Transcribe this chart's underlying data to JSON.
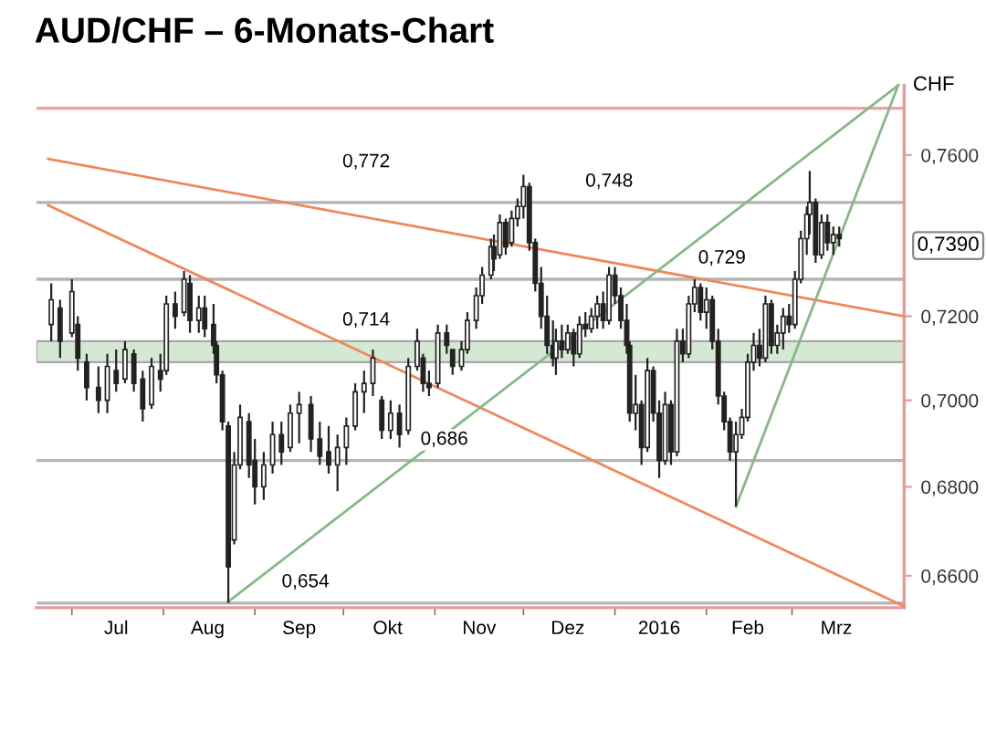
{
  "chart_data": {
    "type": "candlestick",
    "title": "AUD/CHF – 6-Monats-Chart",
    "ylabel": "CHF",
    "log": true,
    "legend": false,
    "grid": false,
    "xlim": [
      "2015-06-19",
      "2016-04-08"
    ],
    "ylim": [
      0.653,
      0.778
    ],
    "yticks": [
      {
        "value": 0.66,
        "label": "0,6600"
      },
      {
        "value": 0.68,
        "label": "0,6800"
      },
      {
        "value": 0.7,
        "label": "0,7000"
      },
      {
        "value": 0.72,
        "label": "0,7200"
      },
      {
        "value": 0.76,
        "label": "0,7600"
      }
    ],
    "xticks": [
      {
        "value": "2015-07-01",
        "label": null
      },
      {
        "value": "2015-07-16",
        "label": "Jul"
      },
      {
        "value": "2015-08-01",
        "label": null
      },
      {
        "value": "2015-08-16",
        "label": "Aug"
      },
      {
        "value": "2015-09-01",
        "label": null
      },
      {
        "value": "2015-09-16",
        "label": "Sep"
      },
      {
        "value": "2015-10-01",
        "label": null
      },
      {
        "value": "2015-10-16",
        "label": "Okt"
      },
      {
        "value": "2015-11-01",
        "label": null
      },
      {
        "value": "2015-11-16",
        "label": "Nov"
      },
      {
        "value": "2015-12-01",
        "label": null
      },
      {
        "value": "2015-12-16",
        "label": "Dez"
      },
      {
        "value": "2016-01-01",
        "label": null
      },
      {
        "value": "2016-01-16",
        "label": "2016"
      },
      {
        "value": "2016-02-01",
        "label": null
      },
      {
        "value": "2016-02-15",
        "label": "Feb"
      },
      {
        "value": "2016-03-01",
        "label": null
      },
      {
        "value": "2016-03-16",
        "label": "Mrz"
      }
    ],
    "x": [
      "2015-06-24",
      "2015-06-27",
      "2015-07-01",
      "2015-07-03",
      "2015-07-06",
      "2015-07-10",
      "2015-07-13",
      "2015-07-16",
      "2015-07-19",
      "2015-07-22",
      "2015-07-25",
      "2015-07-28",
      "2015-07-31",
      "2015-08-02",
      "2015-08-05",
      "2015-08-08",
      "2015-08-10",
      "2015-08-13",
      "2015-08-15",
      "2015-08-18",
      "2015-08-19",
      "2015-08-21",
      "2015-08-23",
      "2015-08-25",
      "2015-08-27",
      "2015-08-30",
      "2015-09-01",
      "2015-09-04",
      "2015-09-07",
      "2015-09-10",
      "2015-09-13",
      "2015-09-16",
      "2015-09-20",
      "2015-09-23",
      "2015-09-26",
      "2015-09-29",
      "2015-10-02",
      "2015-10-05",
      "2015-10-08",
      "2015-10-11",
      "2015-10-14",
      "2015-10-17",
      "2015-10-20",
      "2015-10-23",
      "2015-10-26",
      "2015-10-28",
      "2015-10-30",
      "2015-11-02",
      "2015-11-05",
      "2015-11-07",
      "2015-11-10",
      "2015-11-12",
      "2015-11-15",
      "2015-11-17",
      "2015-11-20",
      "2015-11-21",
      "2015-11-23",
      "2015-11-25",
      "2015-11-27",
      "2015-11-29",
      "2015-12-01",
      "2015-12-03",
      "2015-12-05",
      "2015-12-07",
      "2015-12-09",
      "2015-12-11",
      "2015-12-12",
      "2015-12-14",
      "2015-12-16",
      "2015-12-18",
      "2015-12-20",
      "2015-12-22",
      "2015-12-24",
      "2015-12-26",
      "2015-12-28",
      "2015-12-30",
      "2016-01-01",
      "2016-01-03",
      "2016-01-05",
      "2016-01-06",
      "2016-01-08",
      "2016-01-10",
      "2016-01-12",
      "2016-01-14",
      "2016-01-16",
      "2016-01-18",
      "2016-01-20",
      "2016-01-22",
      "2016-01-24",
      "2016-01-26",
      "2016-01-28",
      "2016-01-30",
      "2016-02-01",
      "2016-02-03",
      "2016-02-05",
      "2016-02-07",
      "2016-02-09",
      "2016-02-11",
      "2016-02-13",
      "2016-02-15",
      "2016-02-17",
      "2016-02-19",
      "2016-02-21",
      "2016-02-23",
      "2016-02-25",
      "2016-02-27",
      "2016-02-29",
      "2016-03-02",
      "2016-03-04",
      "2016-03-06",
      "2016-03-07",
      "2016-03-09",
      "2016-03-11",
      "2016-03-13",
      "2016-03-15",
      "2016-03-17"
    ],
    "ohlc": [
      [
        0.718,
        0.728,
        0.714,
        0.724
      ],
      [
        0.722,
        0.724,
        0.71,
        0.714
      ],
      [
        0.716,
        0.729,
        0.715,
        0.726
      ],
      [
        0.718,
        0.72,
        0.707,
        0.71
      ],
      [
        0.709,
        0.711,
        0.7,
        0.703
      ],
      [
        0.703,
        0.708,
        0.697,
        0.7
      ],
      [
        0.7,
        0.711,
        0.697,
        0.708
      ],
      [
        0.707,
        0.712,
        0.702,
        0.704
      ],
      [
        0.705,
        0.714,
        0.704,
        0.712
      ],
      [
        0.711,
        0.712,
        0.702,
        0.704
      ],
      [
        0.705,
        0.707,
        0.695,
        0.698
      ],
      [
        0.699,
        0.71,
        0.698,
        0.708
      ],
      [
        0.707,
        0.711,
        0.702,
        0.705
      ],
      [
        0.707,
        0.725,
        0.706,
        0.723
      ],
      [
        0.723,
        0.726,
        0.717,
        0.72
      ],
      [
        0.721,
        0.731,
        0.72,
        0.729
      ],
      [
        0.728,
        0.73,
        0.716,
        0.719
      ],
      [
        0.719,
        0.725,
        0.716,
        0.722
      ],
      [
        0.722,
        0.725,
        0.715,
        0.717
      ],
      [
        0.718,
        0.723,
        0.711,
        0.713
      ],
      [
        0.713,
        0.714,
        0.704,
        0.706
      ],
      [
        0.706,
        0.707,
        0.693,
        0.695
      ],
      [
        0.694,
        0.695,
        0.654,
        0.662
      ],
      [
        0.668,
        0.688,
        0.667,
        0.685
      ],
      [
        0.685,
        0.699,
        0.684,
        0.696
      ],
      [
        0.695,
        0.697,
        0.682,
        0.685
      ],
      [
        0.686,
        0.691,
        0.676,
        0.68
      ],
      [
        0.68,
        0.688,
        0.677,
        0.685
      ],
      [
        0.685,
        0.695,
        0.683,
        0.692
      ],
      [
        0.692,
        0.695,
        0.685,
        0.688
      ],
      [
        0.689,
        0.699,
        0.688,
        0.697
      ],
      [
        0.697,
        0.702,
        0.69,
        0.699
      ],
      [
        0.699,
        0.701,
        0.688,
        0.691
      ],
      [
        0.691,
        0.695,
        0.685,
        0.687
      ],
      [
        0.688,
        0.694,
        0.683,
        0.685
      ],
      [
        0.685,
        0.692,
        0.679,
        0.689
      ],
      [
        0.689,
        0.696,
        0.685,
        0.694
      ],
      [
        0.694,
        0.704,
        0.693,
        0.702
      ],
      [
        0.702,
        0.707,
        0.697,
        0.704
      ],
      [
        0.704,
        0.712,
        0.701,
        0.71
      ],
      [
        0.7,
        0.701,
        0.691,
        0.693
      ],
      [
        0.693,
        0.7,
        0.691,
        0.697
      ],
      [
        0.697,
        0.699,
        0.689,
        0.692
      ],
      [
        0.693,
        0.71,
        0.692,
        0.708
      ],
      [
        0.708,
        0.717,
        0.707,
        0.714
      ],
      [
        0.71,
        0.711,
        0.702,
        0.704
      ],
      [
        0.704,
        0.707,
        0.701,
        0.703
      ],
      [
        0.704,
        0.718,
        0.703,
        0.716
      ],
      [
        0.716,
        0.718,
        0.711,
        0.713
      ],
      [
        0.712,
        0.712,
        0.706,
        0.708
      ],
      [
        0.708,
        0.714,
        0.707,
        0.712
      ],
      [
        0.712,
        0.721,
        0.711,
        0.719
      ],
      [
        0.719,
        0.727,
        0.717,
        0.725
      ],
      [
        0.725,
        0.732,
        0.723,
        0.73
      ],
      [
        0.73,
        0.739,
        0.729,
        0.737
      ],
      [
        0.737,
        0.74,
        0.731,
        0.734
      ],
      [
        0.735,
        0.745,
        0.734,
        0.743
      ],
      [
        0.743,
        0.744,
        0.735,
        0.737
      ],
      [
        0.738,
        0.746,
        0.737,
        0.744
      ],
      [
        0.744,
        0.749,
        0.742,
        0.747
      ],
      [
        0.747,
        0.755,
        0.744,
        0.752
      ],
      [
        0.752,
        0.753,
        0.736,
        0.738
      ],
      [
        0.738,
        0.739,
        0.726,
        0.728
      ],
      [
        0.728,
        0.732,
        0.717,
        0.72
      ],
      [
        0.72,
        0.725,
        0.711,
        0.713
      ],
      [
        0.713,
        0.719,
        0.708,
        0.71
      ],
      [
        0.71,
        0.717,
        0.706,
        0.714
      ],
      [
        0.714,
        0.718,
        0.71,
        0.712
      ],
      [
        0.712,
        0.718,
        0.711,
        0.716
      ],
      [
        0.716,
        0.717,
        0.708,
        0.711
      ],
      [
        0.711,
        0.72,
        0.71,
        0.718
      ],
      [
        0.718,
        0.721,
        0.715,
        0.717
      ],
      [
        0.717,
        0.722,
        0.716,
        0.72
      ],
      [
        0.72,
        0.725,
        0.717,
        0.723
      ],
      [
        0.723,
        0.726,
        0.717,
        0.719
      ],
      [
        0.719,
        0.732,
        0.718,
        0.73
      ],
      [
        0.73,
        0.732,
        0.723,
        0.725
      ],
      [
        0.725,
        0.727,
        0.717,
        0.719
      ],
      [
        0.719,
        0.723,
        0.711,
        0.713
      ],
      [
        0.713,
        0.714,
        0.695,
        0.697
      ],
      [
        0.697,
        0.706,
        0.693,
        0.699
      ],
      [
        0.699,
        0.7,
        0.685,
        0.689
      ],
      [
        0.689,
        0.71,
        0.688,
        0.707
      ],
      [
        0.707,
        0.708,
        0.695,
        0.697
      ],
      [
        0.697,
        0.7,
        0.682,
        0.686
      ],
      [
        0.686,
        0.702,
        0.685,
        0.699
      ],
      [
        0.699,
        0.7,
        0.685,
        0.688
      ],
      [
        0.688,
        0.717,
        0.687,
        0.714
      ],
      [
        0.714,
        0.717,
        0.709,
        0.711
      ],
      [
        0.711,
        0.725,
        0.71,
        0.723
      ],
      [
        0.723,
        0.729,
        0.721,
        0.727
      ],
      [
        0.727,
        0.728,
        0.719,
        0.721
      ],
      [
        0.721,
        0.727,
        0.717,
        0.724
      ],
      [
        0.724,
        0.725,
        0.712,
        0.714
      ],
      [
        0.714,
        0.717,
        0.699,
        0.701
      ],
      [
        0.701,
        0.702,
        0.693,
        0.695
      ],
      [
        0.695,
        0.696,
        0.686,
        0.688
      ],
      [
        0.688,
        0.695,
        0.6755,
        0.692
      ],
      [
        0.692,
        0.698,
        0.691,
        0.696
      ],
      [
        0.696,
        0.711,
        0.695,
        0.709
      ],
      [
        0.709,
        0.716,
        0.707,
        0.713
      ],
      [
        0.713,
        0.717,
        0.708,
        0.71
      ],
      [
        0.71,
        0.725,
        0.709,
        0.723
      ],
      [
        0.723,
        0.724,
        0.711,
        0.713
      ],
      [
        0.713,
        0.718,
        0.711,
        0.716
      ],
      [
        0.716,
        0.722,
        0.712,
        0.72
      ],
      [
        0.72,
        0.723,
        0.716,
        0.718
      ],
      [
        0.718,
        0.731,
        0.717,
        0.729
      ],
      [
        0.729,
        0.741,
        0.728,
        0.739
      ],
      [
        0.739,
        0.747,
        0.735,
        0.745
      ],
      [
        0.745,
        0.756,
        0.74,
        0.748
      ],
      [
        0.748,
        0.749,
        0.733,
        0.735
      ],
      [
        0.735,
        0.745,
        0.734,
        0.743
      ],
      [
        0.743,
        0.745,
        0.736,
        0.738
      ],
      [
        0.738,
        0.742,
        0.735,
        0.74
      ],
      [
        0.74,
        0.742,
        0.737,
        0.739
      ]
    ],
    "series": [
      {
        "type": "line",
        "color": "#f0875a",
        "x": [
          "2015-06-23",
          "2016-04-08"
        ],
        "values": [
          0.759,
          0.72
        ]
      },
      {
        "type": "line",
        "color": "#f0875a",
        "x": [
          "2015-06-23",
          "2016-04-08"
        ],
        "values": [
          0.7473,
          0.6533
        ]
      },
      {
        "type": "line",
        "color": "#86b886",
        "x": [
          "2015-08-23",
          "2016-04-06"
        ],
        "values": [
          0.6543,
          0.778
        ]
      },
      {
        "type": "line",
        "color": "#86b886",
        "x": [
          "2016-02-11",
          "2016-04-06"
        ],
        "values": [
          0.6755,
          0.778
        ]
      }
    ],
    "ref_lines": [
      {
        "axis": "y",
        "value": 0.772,
        "label": "0,772",
        "color": "#f4a09a"
      },
      {
        "axis": "y",
        "value": 0.748,
        "label": "0,748",
        "color": "#b4b4b4"
      },
      {
        "axis": "y",
        "value": 0.729,
        "label": "0,729",
        "color": "#b4b4b4"
      },
      {
        "axis": "y",
        "value": 0.686,
        "label": "0,686",
        "color": "#b4b4b4"
      },
      {
        "axis": "y",
        "value": 0.654,
        "label": "0,654",
        "color": "#b4b4b4"
      }
    ],
    "bands": [
      {
        "axis": "y",
        "from": 0.709,
        "to": 0.714,
        "label": "0,714",
        "color": "#d4e8d4"
      }
    ],
    "annotations": [
      "0,7390"
    ]
  }
}
